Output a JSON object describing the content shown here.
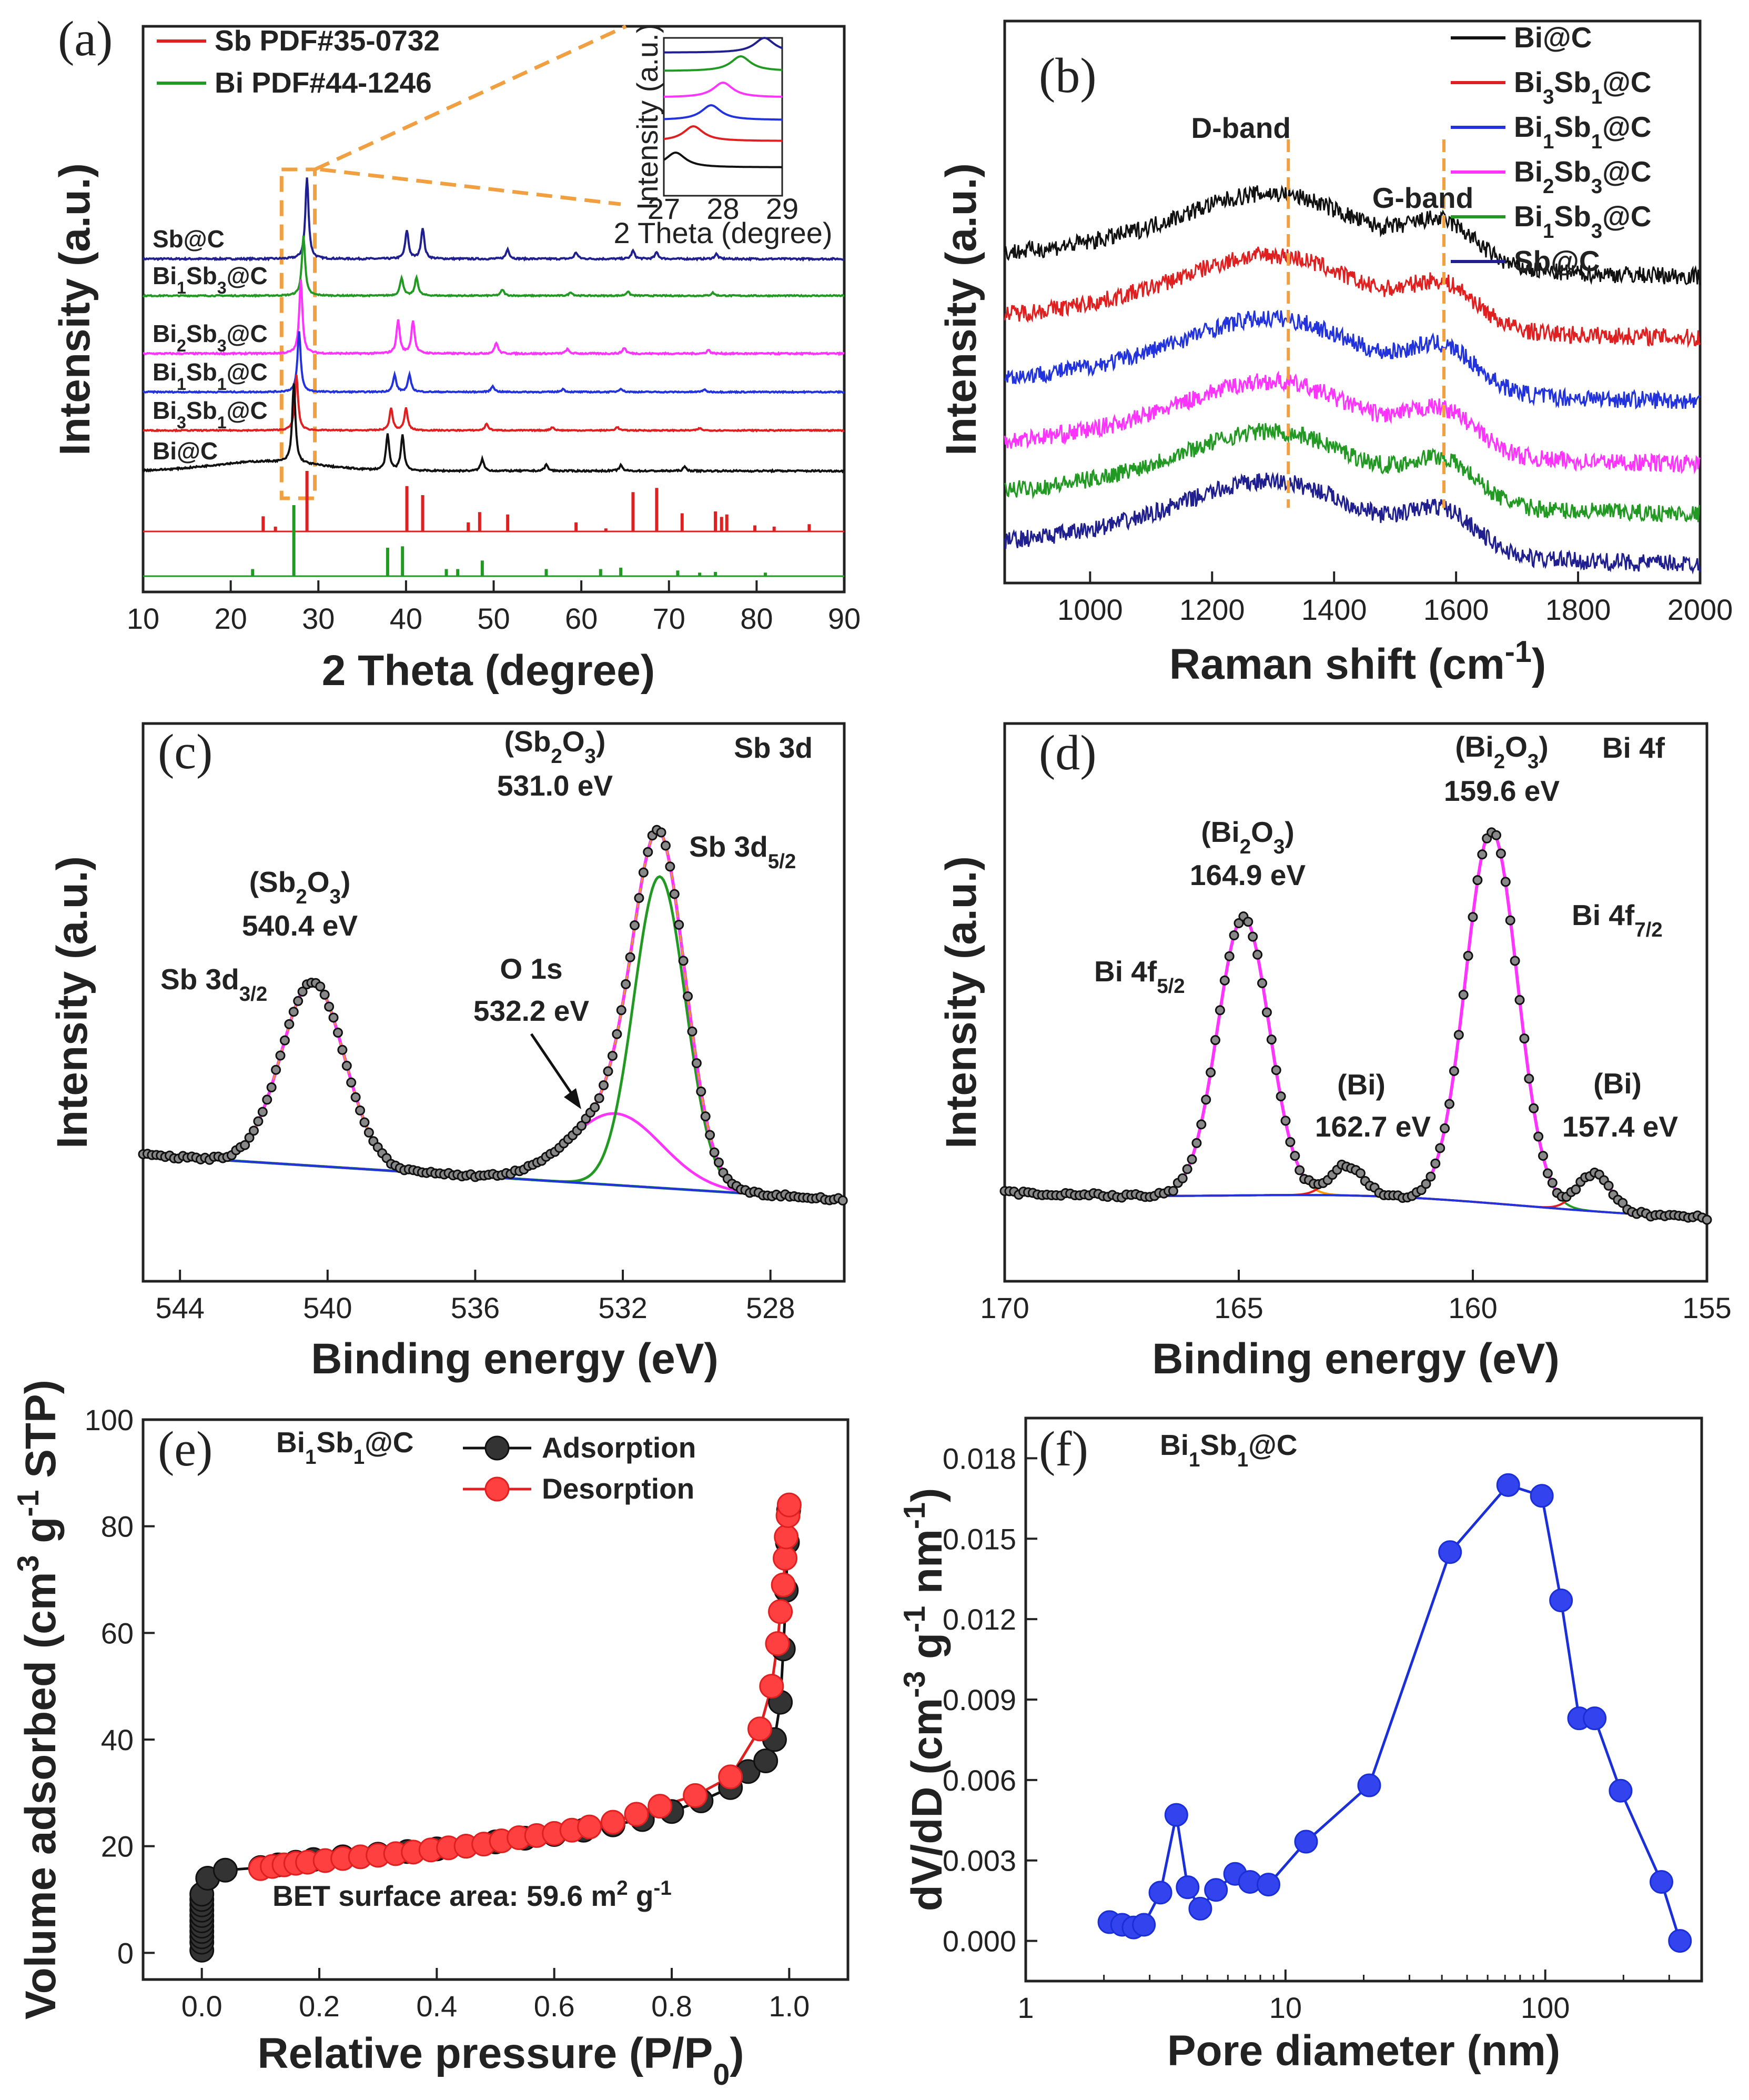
{
  "chart_data": [
    {
      "panel": "(a)",
      "type": "line",
      "xlabel": "2 Theta (degree)",
      "ylabel": "Intensity (a.u.)",
      "xlim": [
        10,
        90
      ],
      "xticks": [
        "10",
        "20",
        "30",
        "40",
        "50",
        "60",
        "70",
        "80",
        "90"
      ],
      "legend": [
        {
          "name": "Sb PDF#35-0732",
          "color": "#e02020"
        },
        {
          "name": "Bi  PDF#44-1246",
          "color": "#229922"
        }
      ],
      "series": [
        {
          "name": "Sb@C",
          "color": "#1f1f8f",
          "peaks": [
            [
              28.7,
              1.0
            ],
            [
              40.1,
              0.35
            ],
            [
              41.9,
              0.38
            ],
            [
              51.6,
              0.12
            ],
            [
              59.4,
              0.08
            ],
            [
              65.9,
              0.1
            ],
            [
              68.6,
              0.08
            ],
            [
              75.4,
              0.06
            ]
          ]
        },
        {
          "name": "Bi1Sb3@C",
          "color": "#229922",
          "peaks": [
            [
              28.3,
              1.0
            ],
            [
              39.5,
              0.3
            ],
            [
              41.2,
              0.3
            ],
            [
              51.0,
              0.1
            ],
            [
              58.8,
              0.06
            ],
            [
              65.3,
              0.07
            ],
            [
              75.0,
              0.05
            ]
          ]
        },
        {
          "name": "Bi2Sb3@C",
          "color": "#ff33ff",
          "peaks": [
            [
              28.0,
              1.0
            ],
            [
              39.1,
              0.45
            ],
            [
              40.8,
              0.45
            ],
            [
              50.3,
              0.15
            ],
            [
              58.4,
              0.06
            ],
            [
              64.9,
              0.08
            ],
            [
              74.5,
              0.05
            ]
          ]
        },
        {
          "name": "Bi1Sb1@C",
          "color": "#2233dd",
          "peaks": [
            [
              27.8,
              1.0
            ],
            [
              38.7,
              0.28
            ],
            [
              40.4,
              0.28
            ],
            [
              49.9,
              0.1
            ],
            [
              57.9,
              0.05
            ],
            [
              64.5,
              0.06
            ],
            [
              74.0,
              0.04
            ]
          ]
        },
        {
          "name": "Bi3Sb1@C",
          "color": "#e02020",
          "peaks": [
            [
              27.5,
              1.0
            ],
            [
              38.3,
              0.4
            ],
            [
              40.0,
              0.4
            ],
            [
              49.2,
              0.12
            ],
            [
              56.7,
              0.06
            ],
            [
              64.1,
              0.06
            ],
            [
              73.5,
              0.04
            ]
          ]
        },
        {
          "name": "Bi@C",
          "color": "#111111",
          "peaks": [
            [
              27.2,
              1.0
            ],
            [
              37.9,
              0.45
            ],
            [
              39.6,
              0.45
            ],
            [
              48.7,
              0.15
            ],
            [
              56.0,
              0.08
            ],
            [
              64.5,
              0.07
            ],
            [
              71.8,
              0.05
            ]
          ]
        }
      ],
      "reference_lines": {
        "Sb": [
          [
            23.7,
            0.25
          ],
          [
            25.1,
            0.08
          ],
          [
            28.7,
            1.0
          ],
          [
            40.1,
            0.75
          ],
          [
            41.9,
            0.6
          ],
          [
            47.1,
            0.15
          ],
          [
            48.4,
            0.32
          ],
          [
            51.6,
            0.28
          ],
          [
            59.4,
            0.15
          ],
          [
            62.8,
            0.05
          ],
          [
            65.9,
            0.65
          ],
          [
            68.6,
            0.72
          ],
          [
            71.5,
            0.3
          ],
          [
            75.3,
            0.33
          ],
          [
            76.0,
            0.24
          ],
          [
            76.6,
            0.28
          ],
          [
            79.8,
            0.1
          ],
          [
            82.0,
            0.08
          ],
          [
            86.0,
            0.12
          ]
        ],
        "Bi": [
          [
            22.5,
            0.1
          ],
          [
            27.2,
            1.0
          ],
          [
            37.9,
            0.4
          ],
          [
            39.6,
            0.42
          ],
          [
            44.6,
            0.1
          ],
          [
            45.9,
            0.1
          ],
          [
            48.7,
            0.22
          ],
          [
            56.0,
            0.1
          ],
          [
            62.2,
            0.1
          ],
          [
            64.5,
            0.12
          ],
          [
            71.0,
            0.08
          ],
          [
            73.5,
            0.05
          ],
          [
            75.3,
            0.06
          ],
          [
            81.0,
            0.05
          ]
        ]
      },
      "inset": {
        "xlabel": "2 Theta (degree)",
        "ylabel": "Intensity (a.u.)",
        "xlim": [
          27,
          29
        ],
        "xticks": [
          "27",
          "28",
          "29"
        ]
      },
      "highlight_range": [
        25.8,
        29.6
      ]
    },
    {
      "panel": "(b)",
      "type": "line",
      "xlabel": "Raman shift (cm",
      "xlabel_sup": "-1",
      "xlabel_end": ")",
      "ylabel": "Intensity (a.u.)",
      "xlim": [
        860,
        2000
      ],
      "xticks": [
        "1000",
        "1200",
        "1400",
        "1600",
        "1800",
        "2000"
      ],
      "bands": [
        {
          "label": "D-band",
          "x": 1325
        },
        {
          "label": "G-band",
          "x": 1580
        }
      ],
      "series": [
        {
          "name": "Bi@C",
          "color": "#111111"
        },
        {
          "name": "Bi3Sb1@C",
          "color": "#e02020"
        },
        {
          "name": "Bi1Sb1@C",
          "color": "#2233dd"
        },
        {
          "name": "Bi2Sb3@C",
          "color": "#ff33ff"
        },
        {
          "name": "Bi1Sb3@C",
          "color": "#229922"
        },
        {
          "name": "Sb@C",
          "color": "#1f1f8f"
        }
      ]
    },
    {
      "panel": "(c)",
      "type": "line",
      "title": "Sb 3d",
      "xlabel": "Binding energy (eV)",
      "ylabel": "Intensity (a.u.)",
      "xlim": [
        545,
        526
      ],
      "xticks": [
        "544",
        "540",
        "536",
        "532",
        "528"
      ],
      "peaks": [
        {
          "center": 540.4,
          "label": "540.4 eV",
          "species": "(Sb2O3)",
          "assign": "Sb 3d3/2"
        },
        {
          "center": 532.2,
          "label": "532.2 eV",
          "species": "",
          "assign": "O 1s"
        },
        {
          "center": 531.0,
          "label": "531.0 eV",
          "species": "(Sb2O3)",
          "assign": "Sb 3d5/2"
        }
      ]
    },
    {
      "panel": "(d)",
      "type": "line",
      "title": "Bi 4f",
      "xlabel": "Binding energy (eV)",
      "ylabel": "Intensity (a.u.)",
      "xlim": [
        170,
        155
      ],
      "xticks": [
        "170",
        "165",
        "160",
        "155"
      ],
      "peaks": [
        {
          "center": 164.9,
          "label": "164.9 eV",
          "species": "(Bi2O3)",
          "assign": "Bi 4f5/2"
        },
        {
          "center": 162.7,
          "label": "162.7 eV",
          "species": "(Bi)",
          "assign": ""
        },
        {
          "center": 159.6,
          "label": "159.6 eV",
          "species": "(Bi2O3)",
          "assign": "Bi 4f7/2"
        },
        {
          "center": 157.4,
          "label": "157.4 eV",
          "species": "(Bi)",
          "assign": ""
        }
      ]
    },
    {
      "panel": "(e)",
      "type": "scatter",
      "sample": "Bi1Sb1@C",
      "xlabel": "Relative pressure (P/P",
      "xlabel_sub": "0",
      "xlabel_end": ")",
      "ylabel": "Volume adsorbed (cm",
      "ylim": [
        -5,
        100
      ],
      "xlim": [
        -0.1,
        1.1
      ],
      "xticks": [
        "0.0",
        "0.2",
        "0.4",
        "0.6",
        "0.8",
        "1.0"
      ],
      "yticks": [
        "0",
        "20",
        "40",
        "60",
        "80",
        "100"
      ],
      "legend": [
        "Adsorption",
        "Desorption"
      ],
      "note": "BET surface area: 59.6 m",
      "series": [
        {
          "name": "Adsorption",
          "color": "#111111",
          "x": [
            0.0,
            0.0,
            0.0,
            0.0,
            0.0,
            0.0,
            0.0,
            0.0,
            0.0,
            0.0,
            0.0,
            0.01,
            0.04,
            0.1,
            0.13,
            0.16,
            0.19,
            0.24,
            0.3,
            0.35,
            0.4,
            0.45,
            0.5,
            0.55,
            0.6,
            0.65,
            0.7,
            0.75,
            0.8,
            0.85,
            0.9,
            0.93,
            0.96,
            0.975,
            0.985,
            0.99,
            0.995,
            0.997,
            0.999
          ],
          "y": [
            0.5,
            2,
            3,
            4,
            5,
            6,
            7,
            8,
            9,
            10,
            11,
            14,
            15.5,
            16,
            16.5,
            17,
            17.5,
            18,
            18.5,
            19,
            19.5,
            20,
            20.8,
            21.5,
            22.2,
            23,
            24,
            25,
            26.5,
            28.5,
            31,
            34,
            36,
            40,
            47,
            57,
            68,
            77,
            83
          ]
        },
        {
          "name": "Desorption",
          "color": "#e02020",
          "x": [
            0.1,
            0.12,
            0.14,
            0.16,
            0.18,
            0.21,
            0.24,
            0.27,
            0.3,
            0.33,
            0.36,
            0.39,
            0.42,
            0.45,
            0.48,
            0.51,
            0.54,
            0.57,
            0.6,
            0.63,
            0.66,
            0.7,
            0.74,
            0.78,
            0.84,
            0.9,
            0.95,
            0.97,
            0.98,
            0.985,
            0.99,
            0.993,
            0.995,
            0.998,
            1.0
          ],
          "y": [
            15.8,
            16.2,
            16.5,
            16.8,
            17,
            17.3,
            17.7,
            18,
            18.3,
            18.6,
            18.9,
            19.3,
            19.7,
            20,
            20.4,
            21,
            21.6,
            22,
            22.4,
            23,
            23.6,
            24.5,
            26,
            27.5,
            29.5,
            33,
            42,
            50,
            58,
            64,
            69,
            74,
            78,
            82,
            84
          ]
        }
      ]
    },
    {
      "panel": "(f)",
      "type": "line",
      "sample": "Bi1Sb1@C",
      "xlabel": "Pore diameter (nm)",
      "ylabel": "dV/dD (cm",
      "xscale": "log",
      "xlim": [
        1,
        400
      ],
      "ylim": [
        -0.0015,
        0.0195
      ],
      "xticks": [
        "1",
        "10",
        "100"
      ],
      "yticks": [
        "0.000",
        "0.003",
        "0.006",
        "0.009",
        "0.012",
        "0.015",
        "0.018"
      ],
      "series": [
        {
          "name": "Bi1Sb1@C",
          "color": "#1a2fd8",
          "x": [
            2.1,
            2.35,
            2.6,
            2.85,
            3.3,
            3.8,
            4.2,
            4.7,
            5.4,
            6.4,
            7.3,
            8.6,
            12,
            21,
            43,
            72,
            97,
            115,
            135,
            155,
            195,
            280,
            330
          ],
          "y": [
            0.0007,
            0.0006,
            0.0005,
            0.0006,
            0.0018,
            0.0047,
            0.002,
            0.0012,
            0.0019,
            0.0025,
            0.0022,
            0.0021,
            0.0037,
            0.0058,
            0.0145,
            0.017,
            0.0166,
            0.0127,
            0.0083,
            0.0083,
            0.0056,
            0.0022,
            0.0
          ]
        }
      ]
    }
  ]
}
